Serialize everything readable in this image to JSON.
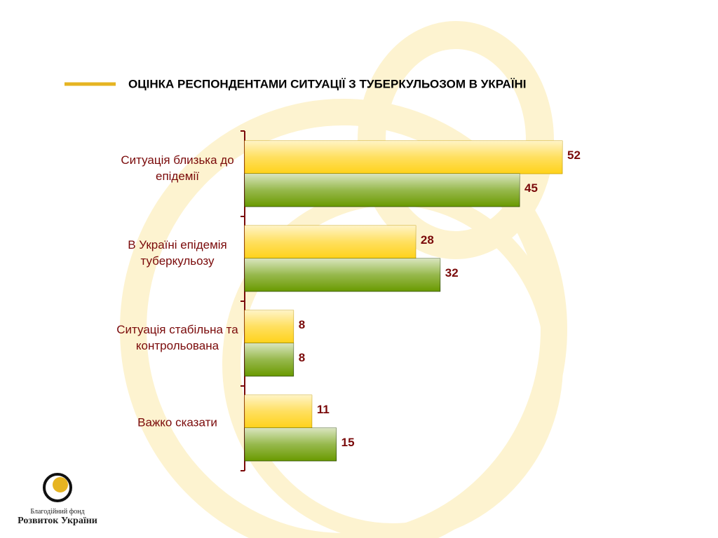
{
  "chart_data": {
    "type": "bar",
    "orientation": "horizontal",
    "title": "ОЦІНКА РЕСПОНДЕНТАМИ СИТУАЦІЇ З ТУБЕРКУЛЬОЗОМ В УКРАЇНІ",
    "categories": [
      "Ситуація близька до епідемії",
      "В Україні епідемія туберкульозу",
      "Ситуація стабільна та контрольована",
      "Важко сказати"
    ],
    "series": [
      {
        "color": "#ffd21a",
        "values": [
          52,
          28,
          8,
          11
        ]
      },
      {
        "color": "#6a9a00",
        "values": [
          45,
          32,
          8,
          15
        ]
      }
    ]
  },
  "logo": {
    "line1": "Благодійний фонд",
    "line2": "Розвиток України"
  }
}
